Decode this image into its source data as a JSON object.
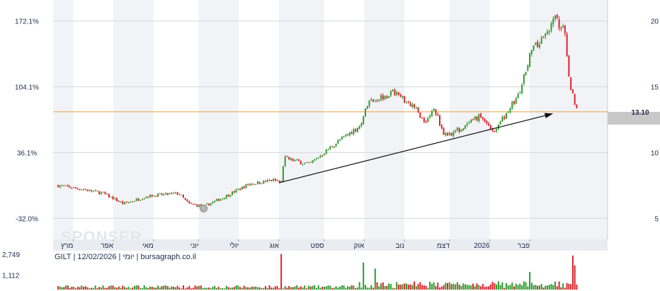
{
  "chart_data": {
    "type": "candlestick",
    "symbol_line": "GILT | 12/02/2026 | יומי | bursagraph.co.il",
    "watermark": "SPONSER",
    "months": [
      {
        "label": "מרץ",
        "x": 2025.17
      },
      {
        "label": "אפר",
        "x": 2025.25
      },
      {
        "label": "מאי",
        "x": 2025.33
      },
      {
        "label": "יוני",
        "x": 2025.42
      },
      {
        "label": "יולי",
        "x": 2025.5
      },
      {
        "label": "אוג",
        "x": 2025.58
      },
      {
        "label": "ספט",
        "x": 2025.67
      },
      {
        "label": "אוק",
        "x": 2025.75
      },
      {
        "label": "נוב",
        "x": 2025.83
      },
      {
        "label": "דצמ",
        "x": 2025.92
      },
      {
        "label": "2026",
        "x": 2026.0
      },
      {
        "label": "פבר",
        "x": 2026.08
      }
    ],
    "price_axis": {
      "ticks": [
        5,
        10,
        15,
        20
      ],
      "ylim": [
        3.4,
        21.6
      ]
    },
    "percent_axis": {
      "ticks": [
        "172.1%",
        "104.1%",
        "36.1%",
        "-32.0%"
      ]
    },
    "last_price": {
      "label": "13.10",
      "value": 13.1
    },
    "horizontal_line": {
      "value": 13.1,
      "color": "#e8a040"
    },
    "trendline": {
      "from": [
        2025.58,
        7.7
      ],
      "to": [
        2026.12,
        12.9
      ]
    },
    "volume_axis": {
      "ticks": [
        "2,749",
        "1,112"
      ]
    },
    "anchors": [
      {
        "x": 2025.14,
        "p": 7.5
      },
      {
        "x": 2025.19,
        "p": 7.2
      },
      {
        "x": 2025.23,
        "p": 6.9
      },
      {
        "x": 2025.27,
        "p": 6.1
      },
      {
        "x": 2025.32,
        "p": 6.7
      },
      {
        "x": 2025.38,
        "p": 6.9
      },
      {
        "x": 2025.4,
        "p": 6.1
      },
      {
        "x": 2025.43,
        "p": 5.9
      },
      {
        "x": 2025.47,
        "p": 6.6
      },
      {
        "x": 2025.52,
        "p": 7.6
      },
      {
        "x": 2025.57,
        "p": 7.9
      },
      {
        "x": 2025.585,
        "p": 7.7
      },
      {
        "x": 2025.59,
        "p": 9.6
      },
      {
        "x": 2025.64,
        "p": 9.1
      },
      {
        "x": 2025.7,
        "p": 10.9
      },
      {
        "x": 2025.74,
        "p": 12.0
      },
      {
        "x": 2025.76,
        "p": 13.9
      },
      {
        "x": 2025.81,
        "p": 14.6
      },
      {
        "x": 2025.85,
        "p": 13.5
      },
      {
        "x": 2025.87,
        "p": 12.3
      },
      {
        "x": 2025.89,
        "p": 13.3
      },
      {
        "x": 2025.91,
        "p": 11.3
      },
      {
        "x": 2025.95,
        "p": 11.9
      },
      {
        "x": 2025.98,
        "p": 12.8
      },
      {
        "x": 2026.01,
        "p": 11.6
      },
      {
        "x": 2026.04,
        "p": 13.4
      },
      {
        "x": 2026.06,
        "p": 14.5
      },
      {
        "x": 2026.08,
        "p": 17.5
      },
      {
        "x": 2026.11,
        "p": 18.9
      },
      {
        "x": 2026.13,
        "p": 20.2
      },
      {
        "x": 2026.15,
        "p": 19.1
      },
      {
        "x": 2026.152,
        "p": 18.4
      },
      {
        "x": 2026.16,
        "p": 15.2
      },
      {
        "x": 2026.175,
        "p": 13.1
      }
    ],
    "volume_spikes": [
      {
        "x": 2025.585,
        "v": 2749
      },
      {
        "x": 2025.75,
        "v": 1750
      },
      {
        "x": 2025.77,
        "v": 1400
      },
      {
        "x": 2026.08,
        "v": 1200
      },
      {
        "x": 2026.165,
        "v": 2400
      },
      {
        "x": 2026.17,
        "v": 1800
      }
    ]
  }
}
